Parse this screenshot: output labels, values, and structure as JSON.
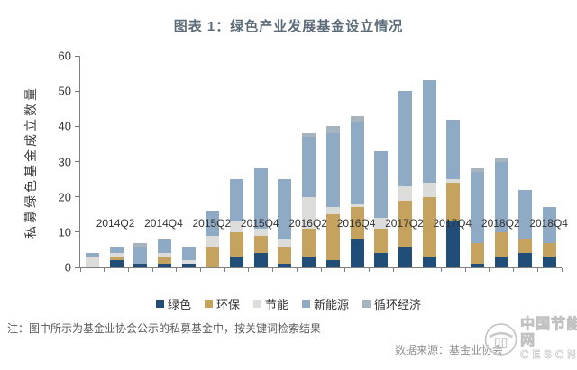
{
  "title": "图表 1：绿色产业发展基金设立情况",
  "chart_data": {
    "type": "bar",
    "stacked": true,
    "title": "图表 1：绿色产业发展基金设立情况",
    "ylabel": "私募绿色基金成立数量",
    "xlabel": "",
    "ylim": [
      0,
      60
    ],
    "ytick_step": 10,
    "grid": false,
    "legend_position": "bottom",
    "categories": [
      "2014Q1",
      "2014Q2",
      "2014Q3",
      "2014Q4",
      "2015Q1",
      "2015Q2",
      "2015Q3",
      "2015Q4",
      "2016Q1",
      "2016Q2",
      "2016Q3",
      "2016Q4",
      "2017Q1",
      "2017Q2",
      "2017Q3",
      "2017Q4",
      "2018Q1",
      "2018Q2",
      "2018Q3",
      "2018Q4"
    ],
    "x_tick_labels": [
      "2014Q2",
      "2014Q4",
      "2015Q2",
      "2015Q4",
      "2016Q2",
      "2016Q4",
      "2017Q2",
      "2017Q4",
      "2018Q2",
      "2018Q4"
    ],
    "series": [
      {
        "name": "绿色",
        "color": "#204E78",
        "values": [
          0,
          2,
          1,
          1,
          1,
          0,
          3,
          4,
          1,
          3,
          2,
          8,
          4,
          6,
          3,
          13,
          1,
          3,
          4,
          3
        ]
      },
      {
        "name": "环保",
        "color": "#C5A35F",
        "values": [
          0,
          1,
          0,
          2,
          0,
          6,
          7,
          5,
          5,
          8,
          13,
          9,
          7,
          13,
          17,
          11,
          6,
          7,
          4,
          4
        ]
      },
      {
        "name": "节能",
        "color": "#DCDCDA",
        "values": [
          3,
          1,
          0,
          1,
          1,
          3,
          3,
          2,
          2,
          9,
          2,
          1,
          3,
          4,
          4,
          1,
          0,
          0,
          0,
          0
        ]
      },
      {
        "name": "新能源",
        "color": "#8FAAC4",
        "values": [
          1,
          2,
          5,
          4,
          4,
          7,
          12,
          17,
          17,
          17,
          21,
          23,
          19,
          27,
          29,
          17,
          20,
          20,
          14,
          10
        ]
      },
      {
        "name": "循环经济",
        "color": "#A7B4BD",
        "values": [
          0,
          0,
          1,
          0,
          0,
          0,
          0,
          0,
          0,
          1,
          2,
          2,
          0,
          0,
          0,
          0,
          1,
          1,
          0,
          0
        ]
      }
    ],
    "totals": [
      4,
      6,
      7,
      8,
      6,
      16,
      25,
      28,
      25,
      38,
      40,
      43,
      33,
      50,
      53,
      42,
      28,
      31,
      22,
      17
    ]
  },
  "note": "注：图中所示为基金业协会公示的私募基金中，按关键词检索结果",
  "source": "数据来源：基金业协会",
  "watermark": {
    "line1": "中国节能网",
    "line2": "CESCN"
  }
}
